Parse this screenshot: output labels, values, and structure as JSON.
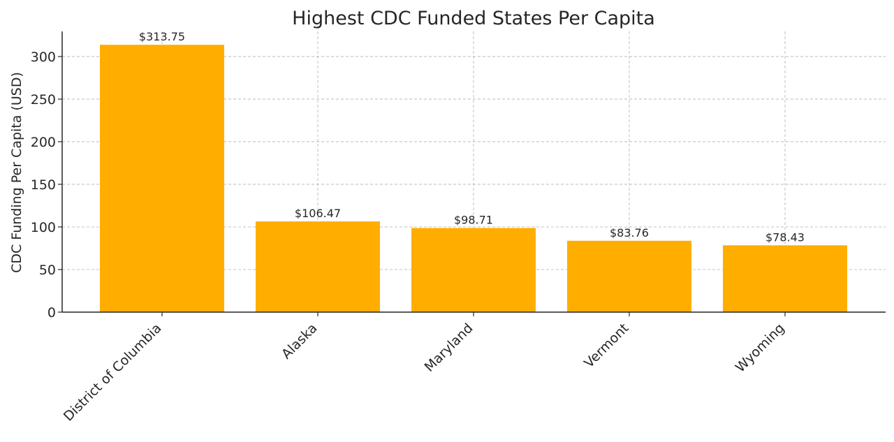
{
  "chart_data": {
    "type": "bar",
    "title": "Highest CDC Funded States Per Capita",
    "xlabel": "",
    "ylabel": "CDC Funding Per Capita (USD)",
    "categories": [
      "District of Columbia",
      "Alaska",
      "Maryland",
      "Vermont",
      "Wyoming"
    ],
    "values": [
      313.75,
      106.47,
      98.71,
      83.76,
      78.43
    ],
    "data_labels": [
      "$313.75",
      "$106.47",
      "$98.71",
      "$83.76",
      "$78.43"
    ],
    "ylim": [
      0,
      329.44
    ],
    "yticks": [
      0,
      50,
      100,
      150,
      200,
      250,
      300
    ],
    "grid": true,
    "bar_color": "#FFAE00",
    "category_label_rotation": "45 degrees"
  }
}
